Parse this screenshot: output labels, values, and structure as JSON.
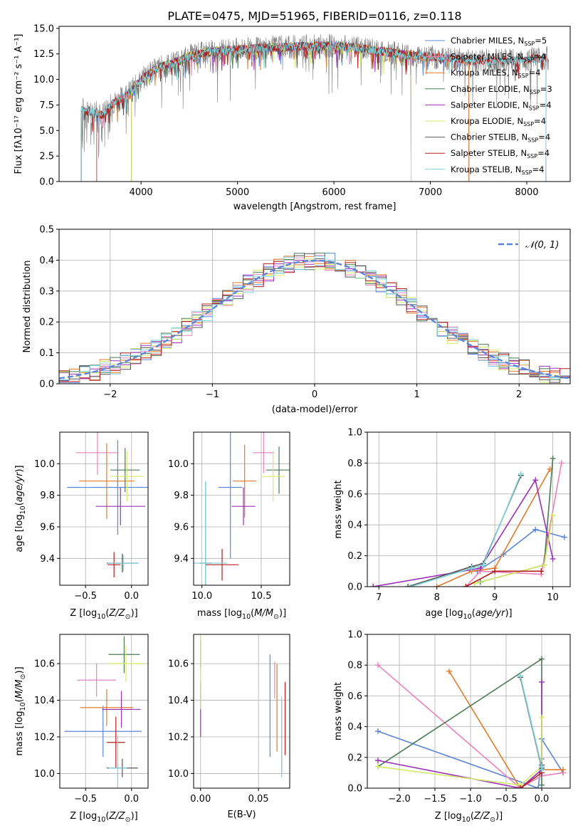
{
  "chart_data": [
    {
      "id": "spectrum",
      "type": "line",
      "title": "PLATE=0475, MJD=51965, FIBERID=0116, z=0.118",
      "xlabel": "wavelength [Angstrom, rest frame]",
      "ylabel": "Flux [f$_\\lambda$10$^{-17}$ erg cm$^{-2}$ s$^{-1}$ A$^{-1}$]",
      "ylabel_display": "Flux [fλ10⁻¹⁷ erg cm⁻² s⁻¹ A⁻¹]",
      "xlim": [
        3150,
        8450
      ],
      "ylim": [
        0,
        15.2
      ],
      "xticks": [
        4000,
        5000,
        6000,
        7000,
        8000
      ],
      "yticks": [
        0.0,
        2.5,
        5.0,
        7.5,
        10.0,
        12.5,
        15.0
      ],
      "grid": false,
      "legend_position": "right",
      "data_range": [
        3380,
        8230
      ],
      "model_profile": {
        "x": [
          3400,
          3500,
          3600,
          3700,
          3800,
          3900,
          4000,
          4100,
          4200,
          4300,
          4400,
          4500,
          4700,
          5000,
          5300,
          5600,
          6000,
          6300,
          6600,
          7000,
          7400,
          7800,
          8200
        ],
        "y": [
          7.0,
          6.8,
          6.5,
          7.6,
          8.2,
          8.9,
          9.9,
          10.7,
          11.2,
          11.5,
          11.8,
          12.3,
          12.7,
          12.9,
          13.1,
          13.2,
          13.3,
          13.0,
          12.6,
          12.2,
          11.9,
          11.8,
          12.1
        ]
      },
      "series": [
        {
          "name": "Chabrier MILES, N$_{SSP}$=5",
          "label": "Chabrier MILES, N",
          "sub": "SSP",
          "suffix": "=5",
          "color": "#5b86d8",
          "range": [
            3540,
            7400
          ]
        },
        {
          "name": "Salpeter MILES, N$_{SSP}$=4",
          "label": "Salpeter MILES, N",
          "sub": "SSP",
          "suffix": "=4",
          "color": "#e882b8",
          "range": [
            3540,
            7400
          ]
        },
        {
          "name": "Kroupa MILES, N$_{SSP}$=4",
          "label": "Kroupa MILES, N",
          "sub": "SSP",
          "suffix": "=4",
          "color": "#e07b2b",
          "range": [
            3540,
            7400
          ]
        },
        {
          "name": "Chabrier ELODIE, N$_{SSP}$=3",
          "label": "Chabrier ELODIE, N",
          "sub": "SSP",
          "suffix": "=3",
          "color": "#4a7a56",
          "range": [
            3900,
            6800
          ]
        },
        {
          "name": "Salpeter ELODIE, N$_{SSP}$=4",
          "label": "Salpeter ELODIE, N",
          "sub": "SSP",
          "suffix": "=4",
          "color": "#9b30b8",
          "range": [
            3900,
            6800
          ]
        },
        {
          "name": "Kroupa ELODIE, N$_{SSP}$=4",
          "label": "Kroupa ELODIE, N",
          "sub": "SSP",
          "suffix": "=4",
          "color": "#d4e86a",
          "range": [
            3900,
            6800
          ]
        },
        {
          "name": "Chabrier STELIB, N$_{SSP}$=4",
          "label": "Chabrier STELIB, N",
          "sub": "SSP",
          "suffix": "=4",
          "color": "#555555",
          "range": [
            3380,
            8200
          ]
        },
        {
          "name": "Salpeter STELIB, N$_{SSP}$=4",
          "label": "Salpeter STELIB, N",
          "sub": "SSP",
          "suffix": "=4",
          "color": "#b31d1d",
          "range": [
            3380,
            8200
          ]
        },
        {
          "name": "Kroupa STELIB, N$_{SSP}$=4",
          "label": "Kroupa STELIB, N",
          "sub": "SSP",
          "suffix": "=4",
          "color": "#80d4dc",
          "range": [
            3380,
            8200
          ]
        }
      ]
    },
    {
      "id": "residuals",
      "type": "histogram",
      "xlabel": "(data-model)/error",
      "ylabel": "Normed distribution",
      "xlim": [
        -2.5,
        2.5
      ],
      "ylim": [
        0,
        0.5
      ],
      "xticks": [
        -2,
        -1,
        0,
        1,
        2
      ],
      "yticks": [
        0.0,
        0.1,
        0.2,
        0.3,
        0.4,
        0.5
      ],
      "grid": true,
      "bins": 50,
      "legend_position": "top-right",
      "reference": {
        "name": "N(0,1)",
        "label": "𝒩(0, 1)",
        "color": "#5b86d8",
        "style": "dashed"
      },
      "series_colors": [
        "#5b86d8",
        "#e882b8",
        "#e07b2b",
        "#4a7a56",
        "#9b30b8",
        "#d4e86a",
        "#555555",
        "#b31d1d",
        "#80d4dc"
      ]
    },
    {
      "id": "age-vs-Z",
      "type": "errorbar",
      "xlabel": "Z [log10(Z/Z⊙)]",
      "ylabel": "age  [log10(age/yr)]",
      "xlim": [
        -0.78,
        0.18
      ],
      "ylim": [
        9.23,
        10.2
      ],
      "xticks": [
        -0.5,
        0.0
      ],
      "yticks": [
        9.4,
        9.6,
        9.8,
        10.0
      ],
      "grid": true,
      "points": [
        {
          "x": -0.15,
          "xerr": 0.55,
          "y": 9.85,
          "yerr": 0.3,
          "color": "#5b86d8"
        },
        {
          "x": -0.37,
          "xerr": 0.23,
          "y": 10.07,
          "yerr": 0.14,
          "color": "#e882b8"
        },
        {
          "x": -0.27,
          "xerr": 0.3,
          "y": 9.89,
          "yerr": 0.24,
          "color": "#e07b2b"
        },
        {
          "x": -0.07,
          "xerr": 0.16,
          "y": 9.96,
          "yerr": 0.14,
          "color": "#4a7a56"
        },
        {
          "x": -0.12,
          "xerr": 0.27,
          "y": 9.73,
          "yerr": 0.12,
          "color": "#9b30b8"
        },
        {
          "x": -0.05,
          "xerr": 0.18,
          "y": 9.92,
          "yerr": 0.16,
          "color": "#d4e86a"
        },
        {
          "x": -0.1,
          "xerr": 0.17,
          "y": 9.37,
          "yerr": 0.06,
          "color": "#555555"
        },
        {
          "x": -0.19,
          "xerr": 0.07,
          "y": 9.36,
          "yerr": 0.08,
          "color": "#b31d1d"
        },
        {
          "x": -0.09,
          "xerr": 0.17,
          "y": 9.37,
          "yerr": 0.05,
          "color": "#80d4dc"
        }
      ]
    },
    {
      "id": "age-vs-mass",
      "type": "errorbar",
      "xlabel": "mass [log10(M/M⊙)]",
      "ylabel": "",
      "xlim": [
        9.93,
        10.74
      ],
      "ylim": [
        9.23,
        10.2
      ],
      "xticks": [
        10.0,
        10.5
      ],
      "yticks": [
        9.4,
        9.6,
        9.8,
        10.0
      ],
      "grid": true,
      "points": [
        {
          "x": 10.24,
          "xerr": 0.1,
          "y": 9.85,
          "yerr": 0.45,
          "color": "#5b86d8"
        },
        {
          "x": 10.52,
          "xerr": 0.09,
          "y": 10.07,
          "yerr": 0.13,
          "color": "#e882b8"
        },
        {
          "x": 10.36,
          "xerr": 0.1,
          "y": 9.89,
          "yerr": 0.23,
          "color": "#e07b2b"
        },
        {
          "x": 10.65,
          "xerr": 0.11,
          "y": 9.96,
          "yerr": 0.15,
          "color": "#4a7a56"
        },
        {
          "x": 10.35,
          "xerr": 0.1,
          "y": 9.73,
          "yerr": 0.12,
          "color": "#9b30b8"
        },
        {
          "x": 10.6,
          "xerr": 0.1,
          "y": 9.92,
          "yerr": 0.16,
          "color": "#d4e86a"
        },
        {
          "x": 10.03,
          "xerr": 0.05,
          "y": 9.37,
          "yerr": 0.51,
          "color": "#555555"
        },
        {
          "x": 10.17,
          "xerr": 0.14,
          "y": 9.36,
          "yerr": 0.1,
          "color": "#b31d1d"
        },
        {
          "x": 10.03,
          "xerr": 0.18,
          "y": 9.37,
          "yerr": 0.52,
          "color": "#80d4dc"
        }
      ]
    },
    {
      "id": "massweight-vs-age",
      "type": "line",
      "xlabel": "age  [log10(age/yr)]",
      "ylabel": "mass weight",
      "xlim": [
        6.8,
        10.3
      ],
      "ylim": [
        0,
        1.0
      ],
      "xticks": [
        7,
        8,
        9,
        10
      ],
      "yticks": [
        0.0,
        0.2,
        0.4,
        0.6,
        0.8,
        1.0
      ],
      "grid": true,
      "series": [
        {
          "color": "#5b86d8",
          "x": [
            8.7,
            9.15,
            9.7,
            10.2
          ],
          "y": [
            0.1,
            0.21,
            0.37,
            0.32
          ]
        },
        {
          "color": "#e882b8",
          "x": [
            8.5,
            8.75,
            9.8,
            10.15
          ],
          "y": [
            0.0,
            0.1,
            0.08,
            0.8
          ]
        },
        {
          "color": "#e07b2b",
          "x": [
            8.0,
            8.6,
            9.0,
            9.95
          ],
          "y": [
            0.0,
            0.1,
            0.12,
            0.76
          ]
        },
        {
          "color": "#4a7a56",
          "x": [
            8.75,
            9.85,
            10.0
          ],
          "y": [
            0.03,
            0.14,
            0.83
          ]
        },
        {
          "color": "#9b30b8",
          "x": [
            6.9,
            8.75,
            9.7,
            10.0
          ],
          "y": [
            0.0,
            0.12,
            0.69,
            0.18
          ]
        },
        {
          "color": "#d4e86a",
          "x": [
            8.65,
            9.85,
            10.0
          ],
          "y": [
            0.02,
            0.14,
            0.46
          ]
        },
        {
          "color": "#555555",
          "x": [
            7.5,
            8.6,
            8.8,
            9.45
          ],
          "y": [
            0.0,
            0.13,
            0.15,
            0.72
          ]
        },
        {
          "color": "#b31d1d",
          "x": [
            8.5,
            9.0,
            9.8
          ],
          "y": [
            0.0,
            0.1,
            0.1
          ]
        },
        {
          "color": "#80d4dc",
          "x": [
            7.55,
            8.6,
            8.8,
            9.45
          ],
          "y": [
            0.0,
            0.12,
            0.14,
            0.73
          ]
        }
      ]
    },
    {
      "id": "mass-vs-Z",
      "type": "errorbar",
      "xlabel": "Z [log10(Z/Z⊙)]",
      "ylabel": "mass [log10(M/M⊙)]",
      "xlim": [
        -0.78,
        0.18
      ],
      "ylim": [
        9.92,
        10.76
      ],
      "xticks": [
        -0.5,
        0.0
      ],
      "yticks": [
        10.0,
        10.2,
        10.4,
        10.6
      ],
      "grid": true,
      "points": [
        {
          "x": -0.31,
          "xerr": 0.42,
          "y": 10.23,
          "yerr": 0.14,
          "color": "#5b86d8"
        },
        {
          "x": -0.38,
          "xerr": 0.21,
          "y": 10.51,
          "yerr": 0.09,
          "color": "#e882b8"
        },
        {
          "x": -0.27,
          "xerr": 0.29,
          "y": 10.36,
          "yerr": 0.1,
          "color": "#e07b2b"
        },
        {
          "x": -0.08,
          "xerr": 0.17,
          "y": 10.65,
          "yerr": 0.1,
          "color": "#4a7a56"
        },
        {
          "x": -0.11,
          "xerr": 0.21,
          "y": 10.35,
          "yerr": 0.1,
          "color": "#9b30b8"
        },
        {
          "x": -0.06,
          "xerr": 0.19,
          "y": 10.6,
          "yerr": 0.1,
          "color": "#d4e86a"
        },
        {
          "x": -0.1,
          "xerr": 0.17,
          "y": 10.03,
          "yerr": 0.05,
          "color": "#555555"
        },
        {
          "x": -0.17,
          "xerr": 0.1,
          "y": 10.17,
          "yerr": 0.14,
          "color": "#b31d1d"
        },
        {
          "x": -0.15,
          "xerr": 0.1,
          "y": 10.03,
          "yerr": 0.18,
          "color": "#80d4dc"
        }
      ]
    },
    {
      "id": "mass-vs-ebv",
      "type": "errorbar",
      "xlabel": "E(B-V)",
      "ylabel": "",
      "xlim": [
        -0.006,
        0.077
      ],
      "ylim": [
        9.92,
        10.76
      ],
      "xticks": [
        0.0,
        0.05
      ],
      "yticks": [
        10.0,
        10.2,
        10.4,
        10.6
      ],
      "grid": true,
      "points": [
        {
          "x": 0.06,
          "y": 10.37,
          "yerr": 0.28,
          "color": "#5b86d8"
        },
        {
          "x": 0.064,
          "y": 10.51,
          "yerr": 0.1,
          "color": "#e882b8"
        },
        {
          "x": 0.066,
          "y": 10.36,
          "yerr": 0.24,
          "color": "#e07b2b"
        },
        {
          "x": 0.0,
          "y": 10.65,
          "yerr": 0.07,
          "color": "#4a7a56"
        },
        {
          "x": 0.0,
          "y": 10.35,
          "yerr": 0.15,
          "color": "#9b30b8"
        },
        {
          "x": 0.0,
          "y": 10.55,
          "yerr": 0.2,
          "color": "#d4e86a"
        },
        {
          "x": 0.07,
          "y": 10.2,
          "yerr": 0.2,
          "color": "#555555"
        },
        {
          "x": 0.073,
          "y": 10.3,
          "yerr": 0.2,
          "color": "#b31d1d"
        },
        {
          "x": 0.07,
          "y": 10.2,
          "yerr": 0.22,
          "color": "#80d4dc"
        }
      ]
    },
    {
      "id": "massweight-vs-Z",
      "type": "line",
      "xlabel": "Z [log10(Z/Z⊙)]",
      "ylabel": "mass weight",
      "xlim": [
        -2.45,
        0.4
      ],
      "ylim": [
        0,
        1.0
      ],
      "xticks": [
        -2.0,
        -1.5,
        -1.0,
        -0.5,
        0.0
      ],
      "yticks": [
        0.0,
        0.2,
        0.4,
        0.6,
        0.8,
        1.0
      ],
      "grid": true,
      "series": [
        {
          "color": "#5b86d8",
          "x": [
            -2.3,
            -0.05,
            0.0,
            0.0,
            0.3
          ],
          "y": [
            0.37,
            0.0,
            0.19,
            0.32,
            0.1
          ]
        },
        {
          "color": "#e882b8",
          "x": [
            -2.3,
            -0.3,
            0.0,
            0.3
          ],
          "y": [
            0.8,
            0.0,
            0.08,
            0.1
          ]
        },
        {
          "color": "#e07b2b",
          "x": [
            -1.3,
            -0.3,
            0.0,
            0.3
          ],
          "y": [
            0.76,
            0.0,
            0.12,
            0.12
          ]
        },
        {
          "color": "#4a7a56",
          "x": [
            -2.3,
            0.0,
            0.0
          ],
          "y": [
            0.14,
            0.84,
            0.02
          ]
        },
        {
          "color": "#9b30b8",
          "x": [
            -2.3,
            -0.3,
            0.0,
            0.0
          ],
          "y": [
            0.18,
            0.0,
            0.12,
            0.69
          ]
        },
        {
          "color": "#d4e86a",
          "x": [
            -2.3,
            -0.3,
            0.0,
            0.0
          ],
          "y": [
            0.14,
            0.02,
            0.14,
            0.46
          ]
        },
        {
          "color": "#555555",
          "x": [
            -0.3,
            0.0,
            0.0
          ],
          "y": [
            0.72,
            0.13,
            0.15
          ]
        },
        {
          "color": "#b31d1d",
          "x": [
            -0.3,
            0.0
          ],
          "y": [
            0.0,
            0.1
          ]
        },
        {
          "color": "#80d4dc",
          "x": [
            -0.3,
            0.0,
            0.0
          ],
          "y": [
            0.73,
            0.14,
            0.12
          ]
        }
      ]
    }
  ]
}
